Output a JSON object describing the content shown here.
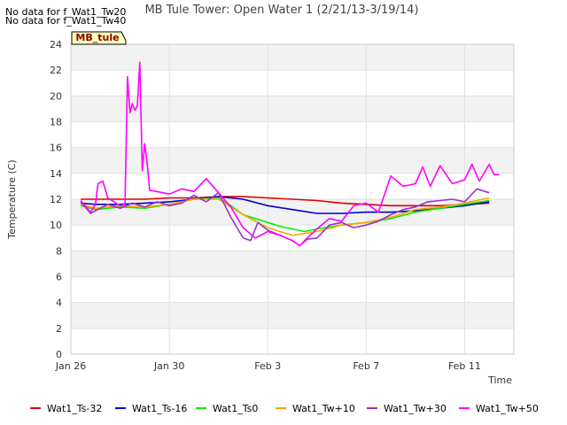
{
  "title": "MB Tule Tower: Open Water 1 (2/21/13-3/19/14)",
  "no_data_messages": [
    "No data for f_Wat1_Tw20",
    "No data for f_Wat1_Tw40"
  ],
  "site_badge": "MB_tule",
  "colors": {
    "Wat1_Ts-32": "#dd0000",
    "Wat1_Ts-16": "#0000cc",
    "Wat1_Ts0": "#00ee00",
    "Wat1_Tw+10": "#ffa500",
    "Wat1_Tw+30": "#9933cc",
    "Wat1_Tw+50": "#ff00ff",
    "badge_fill": "#ffffc0",
    "badge_text": "#8b0000"
  },
  "chart_data": {
    "type": "line",
    "title": "MB Tule Tower: Open Water 1 (2/21/13-3/19/14)",
    "xlabel": "Time",
    "ylabel": "Temperature (C)",
    "x_unit": "days since Jan 26",
    "x_ticks": [
      {
        "x": 0,
        "label": "Jan 26"
      },
      {
        "x": 4,
        "label": "Jan 30"
      },
      {
        "x": 8,
        "label": "Feb 3"
      },
      {
        "x": 12,
        "label": "Feb 7"
      },
      {
        "x": 16,
        "label": "Feb 11"
      }
    ],
    "xlim": [
      0,
      18
    ],
    "ylim": [
      0,
      24
    ],
    "y_ticks": [
      0,
      2,
      4,
      6,
      8,
      10,
      12,
      14,
      16,
      18,
      20,
      22,
      24
    ],
    "grid": true,
    "legend_placement": "bottom",
    "series": [
      {
        "name": "Wat1_Ts-32",
        "points": [
          [
            0.4,
            12.0
          ],
          [
            1.0,
            12.0
          ],
          [
            2.0,
            12.0
          ],
          [
            3.0,
            12.0
          ],
          [
            4.0,
            12.1
          ],
          [
            5.0,
            12.1
          ],
          [
            6.0,
            12.2
          ],
          [
            7.0,
            12.2
          ],
          [
            8.0,
            12.1
          ],
          [
            9.0,
            12.0
          ],
          [
            10.0,
            11.9
          ],
          [
            11.0,
            11.7
          ],
          [
            12.0,
            11.6
          ],
          [
            13.0,
            11.5
          ],
          [
            14.0,
            11.5
          ],
          [
            15.0,
            11.5
          ],
          [
            16.0,
            11.6
          ],
          [
            17.0,
            11.7
          ]
        ]
      },
      {
        "name": "Wat1_Ts-16",
        "points": [
          [
            0.4,
            11.7
          ],
          [
            1.0,
            11.6
          ],
          [
            2.0,
            11.6
          ],
          [
            3.0,
            11.7
          ],
          [
            4.0,
            11.8
          ],
          [
            5.0,
            12.0
          ],
          [
            6.0,
            12.2
          ],
          [
            7.0,
            12.0
          ],
          [
            8.0,
            11.5
          ],
          [
            9.0,
            11.2
          ],
          [
            10.0,
            10.9
          ],
          [
            11.0,
            10.9
          ],
          [
            12.0,
            11.0
          ],
          [
            13.0,
            11.0
          ],
          [
            14.0,
            11.1
          ],
          [
            15.0,
            11.3
          ],
          [
            16.0,
            11.5
          ],
          [
            17.0,
            11.8
          ]
        ]
      },
      {
        "name": "Wat1_Ts0",
        "points": [
          [
            0.4,
            11.5
          ],
          [
            1.0,
            11.2
          ],
          [
            2.0,
            11.4
          ],
          [
            3.0,
            11.3
          ],
          [
            4.0,
            11.6
          ],
          [
            5.0,
            12.0
          ],
          [
            6.0,
            12.1
          ],
          [
            6.5,
            11.5
          ],
          [
            7.0,
            10.8
          ],
          [
            8.0,
            10.2
          ],
          [
            8.5,
            9.9
          ],
          [
            9.0,
            9.7
          ],
          [
            9.5,
            9.5
          ],
          [
            10.0,
            9.7
          ],
          [
            11.0,
            10.0
          ],
          [
            12.0,
            10.2
          ],
          [
            13.0,
            10.5
          ],
          [
            14.0,
            11.0
          ],
          [
            15.0,
            11.3
          ],
          [
            16.0,
            11.6
          ],
          [
            17.0,
            11.9
          ]
        ]
      },
      {
        "name": "Wat1_Tw+10",
        "points": [
          [
            0.4,
            11.6
          ],
          [
            1.0,
            11.3
          ],
          [
            2.0,
            11.5
          ],
          [
            3.0,
            11.4
          ],
          [
            4.0,
            11.6
          ],
          [
            5.0,
            12.0
          ],
          [
            6.0,
            12.0
          ],
          [
            7.0,
            10.8
          ],
          [
            8.0,
            9.8
          ],
          [
            9.0,
            9.2
          ],
          [
            10.0,
            9.5
          ],
          [
            11.0,
            10.0
          ],
          [
            12.0,
            10.2
          ],
          [
            13.0,
            10.6
          ],
          [
            14.0,
            11.2
          ],
          [
            15.0,
            11.4
          ],
          [
            16.0,
            11.7
          ],
          [
            17.0,
            12.1
          ]
        ]
      },
      {
        "name": "Wat1_Tw+30",
        "points": [
          [
            0.4,
            11.8
          ],
          [
            0.8,
            10.9
          ],
          [
            1.0,
            11.1
          ],
          [
            1.5,
            11.6
          ],
          [
            2.0,
            11.3
          ],
          [
            2.5,
            11.7
          ],
          [
            3.0,
            11.4
          ],
          [
            3.5,
            11.8
          ],
          [
            4.0,
            11.5
          ],
          [
            4.5,
            11.7
          ],
          [
            5.0,
            12.3
          ],
          [
            5.5,
            11.8
          ],
          [
            6.0,
            12.5
          ],
          [
            6.5,
            10.6
          ],
          [
            7.0,
            9.0
          ],
          [
            7.3,
            8.8
          ],
          [
            7.6,
            10.2
          ],
          [
            8.0,
            9.6
          ],
          [
            8.5,
            9.2
          ],
          [
            9.0,
            8.8
          ],
          [
            9.3,
            8.4
          ],
          [
            9.6,
            8.9
          ],
          [
            10.0,
            9.0
          ],
          [
            10.5,
            10.0
          ],
          [
            11.0,
            10.2
          ],
          [
            11.5,
            9.8
          ],
          [
            12.0,
            10.0
          ],
          [
            12.5,
            10.3
          ],
          [
            13.0,
            10.8
          ],
          [
            13.5,
            11.2
          ],
          [
            14.0,
            11.4
          ],
          [
            14.5,
            11.8
          ],
          [
            15.0,
            11.9
          ],
          [
            15.5,
            12.0
          ],
          [
            16.0,
            11.8
          ],
          [
            16.5,
            12.8
          ],
          [
            17.0,
            12.5
          ]
        ]
      },
      {
        "name": "Wat1_Tw+50",
        "points": [
          [
            0.4,
            11.9
          ],
          [
            0.8,
            11.0
          ],
          [
            1.0,
            11.6
          ],
          [
            1.1,
            13.2
          ],
          [
            1.3,
            13.4
          ],
          [
            1.5,
            12.1
          ],
          [
            2.0,
            11.5
          ],
          [
            2.2,
            11.6
          ],
          [
            2.3,
            21.5
          ],
          [
            2.4,
            18.7
          ],
          [
            2.5,
            19.4
          ],
          [
            2.6,
            18.9
          ],
          [
            2.7,
            19.2
          ],
          [
            2.8,
            22.6
          ],
          [
            2.9,
            14.2
          ],
          [
            3.0,
            16.3
          ],
          [
            3.1,
            14.8
          ],
          [
            3.2,
            12.7
          ],
          [
            3.5,
            12.6
          ],
          [
            4.0,
            12.4
          ],
          [
            4.5,
            12.8
          ],
          [
            5.0,
            12.6
          ],
          [
            5.5,
            13.6
          ],
          [
            6.0,
            12.5
          ],
          [
            6.5,
            11.4
          ],
          [
            7.0,
            9.8
          ],
          [
            7.5,
            9.0
          ],
          [
            8.0,
            9.5
          ],
          [
            8.5,
            9.2
          ],
          [
            9.0,
            8.8
          ],
          [
            9.3,
            8.4
          ],
          [
            9.6,
            9.0
          ],
          [
            10.0,
            9.7
          ],
          [
            10.5,
            10.5
          ],
          [
            11.0,
            10.3
          ],
          [
            11.5,
            11.5
          ],
          [
            12.0,
            11.7
          ],
          [
            12.5,
            11.0
          ],
          [
            13.0,
            13.8
          ],
          [
            13.5,
            13.0
          ],
          [
            14.0,
            13.2
          ],
          [
            14.3,
            14.5
          ],
          [
            14.6,
            13.0
          ],
          [
            15.0,
            14.6
          ],
          [
            15.5,
            13.2
          ],
          [
            16.0,
            13.5
          ],
          [
            16.3,
            14.7
          ],
          [
            16.6,
            13.4
          ],
          [
            17.0,
            14.7
          ],
          [
            17.2,
            13.9
          ],
          [
            17.4,
            13.9
          ]
        ]
      }
    ]
  }
}
